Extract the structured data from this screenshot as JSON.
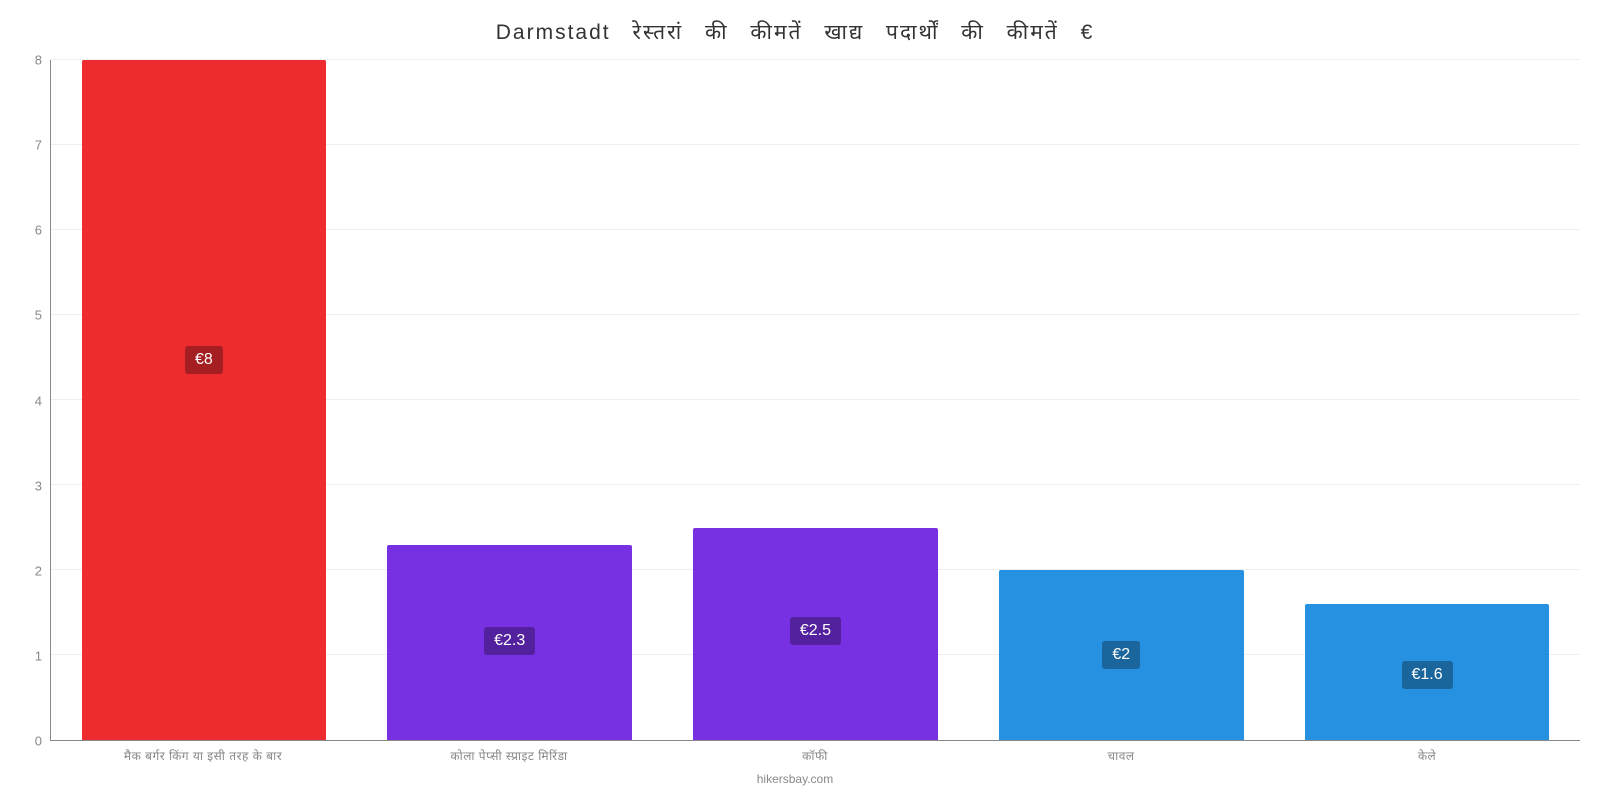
{
  "chart": {
    "type": "bar",
    "title": "Darmstadt रेस्तरां की कीमतें खाद्य पदार्थों की कीमतें €",
    "title_fontsize": 21,
    "title_color": "#333333",
    "background_color": "#ffffff",
    "grid_color": "#eeeeee",
    "axis_line_color": "#888888",
    "tick_label_color": "#888888",
    "tick_fontsize": 13,
    "xlabel_fontsize": 12,
    "ylim": [
      0,
      8
    ],
    "ytick_step": 1,
    "yticks": [
      0,
      1,
      2,
      3,
      4,
      5,
      6,
      7,
      8
    ],
    "bar_width_pct": 80,
    "bars": [
      {
        "category": "मैक बर्गर किंग या इसी तरह के बार",
        "value": 8.0,
        "value_label": "€8",
        "bar_color": "#ee2b2f",
        "badge_bg": "#a51e21"
      },
      {
        "category": "कोला पेप्सी स्प्राइट मिरिंडा",
        "value": 2.3,
        "value_label": "€2.3",
        "bar_color": "#7830e3",
        "badge_bg": "#54219e"
      },
      {
        "category": "कॉफी",
        "value": 2.5,
        "value_label": "€2.5",
        "bar_color": "#7830e3",
        "badge_bg": "#54219e"
      },
      {
        "category": "चावल",
        "value": 2.0,
        "value_label": "€2",
        "bar_color": "#2690e1",
        "badge_bg": "#1b659d"
      },
      {
        "category": "केले",
        "value": 1.6,
        "value_label": "€1.6",
        "bar_color": "#2690e1",
        "badge_bg": "#1b659d"
      }
    ],
    "footer": "hikersbay.com",
    "badge_text_color": "#ffffff",
    "badge_fontsize": 16
  }
}
